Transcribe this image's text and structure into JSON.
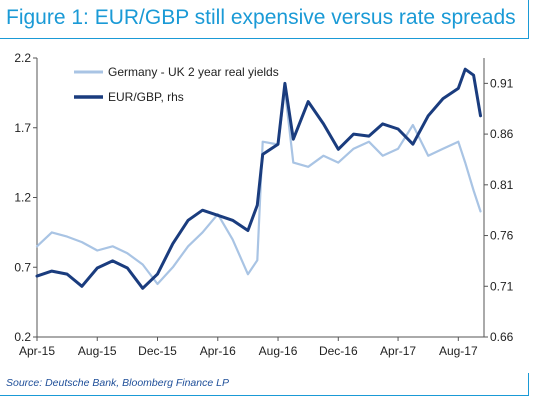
{
  "figure": {
    "title": "Figure 1: EUR/GBP still expensive versus rate spreads",
    "source": "Source: Deutsche Bank, Bloomberg Finance LP",
    "accent_color": "#1a9ad6"
  },
  "chart_data": {
    "type": "line",
    "title": "Figure 1: EUR/GBP still expensive versus rate spreads",
    "xlabel": "",
    "ylabel": "",
    "x_tick_labels": [
      "Apr-15",
      "Aug-15",
      "Dec-15",
      "Apr-16",
      "Aug-16",
      "Dec-16",
      "Apr-17",
      "Aug-17"
    ],
    "y_left": {
      "lim": [
        0.2,
        2.2
      ],
      "ticks": [
        0.2,
        0.7,
        1.2,
        1.7,
        2.2
      ]
    },
    "y_right": {
      "lim": [
        0.66,
        0.935
      ],
      "ticks": [
        0.66,
        0.71,
        0.76,
        0.81,
        0.86,
        0.91
      ]
    },
    "grid": false,
    "legend_position": "top-left",
    "series": [
      {
        "name": "Germany - UK 2 year real yields",
        "axis": "left",
        "color": "#a9c4e4",
        "x": [
          "2015-04-01",
          "2015-05-01",
          "2015-06-01",
          "2015-07-01",
          "2015-08-01",
          "2015-09-01",
          "2015-10-01",
          "2015-11-01",
          "2015-12-01",
          "2016-01-01",
          "2016-02-01",
          "2016-03-01",
          "2016-04-01",
          "2016-05-01",
          "2016-06-01",
          "2016-06-20",
          "2016-07-01",
          "2016-08-01",
          "2016-08-15",
          "2016-09-01",
          "2016-10-01",
          "2016-11-01",
          "2016-12-01",
          "2017-01-01",
          "2017-02-01",
          "2017-03-01",
          "2017-04-01",
          "2017-05-01",
          "2017-06-01",
          "2017-07-01",
          "2017-08-01",
          "2017-08-15",
          "2017-09-01",
          "2017-09-15"
        ],
        "values": [
          0.85,
          0.95,
          0.92,
          0.88,
          0.82,
          0.85,
          0.8,
          0.72,
          0.58,
          0.7,
          0.85,
          0.95,
          1.08,
          0.9,
          0.65,
          0.75,
          1.6,
          1.58,
          1.97,
          1.45,
          1.42,
          1.5,
          1.45,
          1.55,
          1.6,
          1.5,
          1.55,
          1.72,
          1.5,
          1.55,
          1.6,
          1.45,
          1.25,
          1.1
        ]
      },
      {
        "name": "EUR/GBP, rhs",
        "axis": "right",
        "color": "#1a3c7e",
        "x": [
          "2015-04-01",
          "2015-05-01",
          "2015-06-01",
          "2015-07-01",
          "2015-08-01",
          "2015-09-01",
          "2015-10-01",
          "2015-11-01",
          "2015-12-01",
          "2016-01-01",
          "2016-02-01",
          "2016-03-01",
          "2016-04-01",
          "2016-05-01",
          "2016-06-01",
          "2016-06-20",
          "2016-07-01",
          "2016-08-01",
          "2016-08-15",
          "2016-09-01",
          "2016-10-01",
          "2016-11-01",
          "2016-12-01",
          "2017-01-01",
          "2017-02-01",
          "2017-03-01",
          "2017-04-01",
          "2017-05-01",
          "2017-06-01",
          "2017-07-01",
          "2017-08-01",
          "2017-08-15",
          "2017-09-01",
          "2017-09-15"
        ],
        "values": [
          0.72,
          0.725,
          0.722,
          0.71,
          0.728,
          0.735,
          0.728,
          0.708,
          0.722,
          0.752,
          0.775,
          0.785,
          0.78,
          0.775,
          0.765,
          0.79,
          0.84,
          0.85,
          0.91,
          0.855,
          0.892,
          0.87,
          0.845,
          0.86,
          0.858,
          0.87,
          0.865,
          0.85,
          0.878,
          0.895,
          0.905,
          0.924,
          0.918,
          0.878
        ]
      }
    ]
  }
}
